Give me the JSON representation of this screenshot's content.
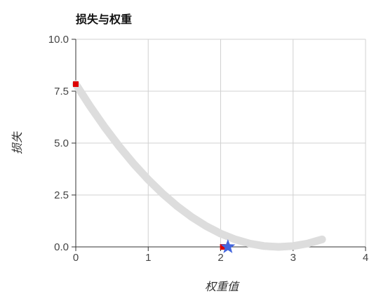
{
  "chart_data": {
    "type": "line",
    "title": "损失与权重",
    "xlabel": "权重值",
    "ylabel": "损失",
    "xlim": [
      0,
      4
    ],
    "ylim": [
      0,
      10
    ],
    "x_ticks": [
      "0",
      "1",
      "2",
      "3",
      "4"
    ],
    "y_ticks": [
      "0.0",
      "2.5",
      "5.0",
      "7.5",
      "10.0"
    ],
    "grid": true,
    "series": [
      {
        "kind": "curve",
        "color": "#dddddd",
        "x": [
          0,
          0.2,
          0.4,
          0.6,
          0.8,
          1.0,
          1.2,
          1.4,
          1.6,
          1.8,
          2.0,
          2.2,
          2.4,
          2.6,
          2.8,
          3.0,
          3.2,
          3.4
        ],
        "y": [
          7.84,
          6.76,
          5.76,
          4.84,
          4.0,
          3.24,
          2.56,
          1.96,
          1.44,
          1.0,
          0.64,
          0.36,
          0.16,
          0.04,
          0.0,
          0.04,
          0.16,
          0.36
        ]
      },
      {
        "kind": "points",
        "marker": "square",
        "color": "#dd0000",
        "x": [
          0,
          2.03
        ],
        "y": [
          7.84,
          0.0
        ]
      },
      {
        "kind": "points",
        "marker": "star",
        "color": "#4466dd",
        "x": [
          2.1
        ],
        "y": [
          0.0
        ]
      }
    ]
  }
}
